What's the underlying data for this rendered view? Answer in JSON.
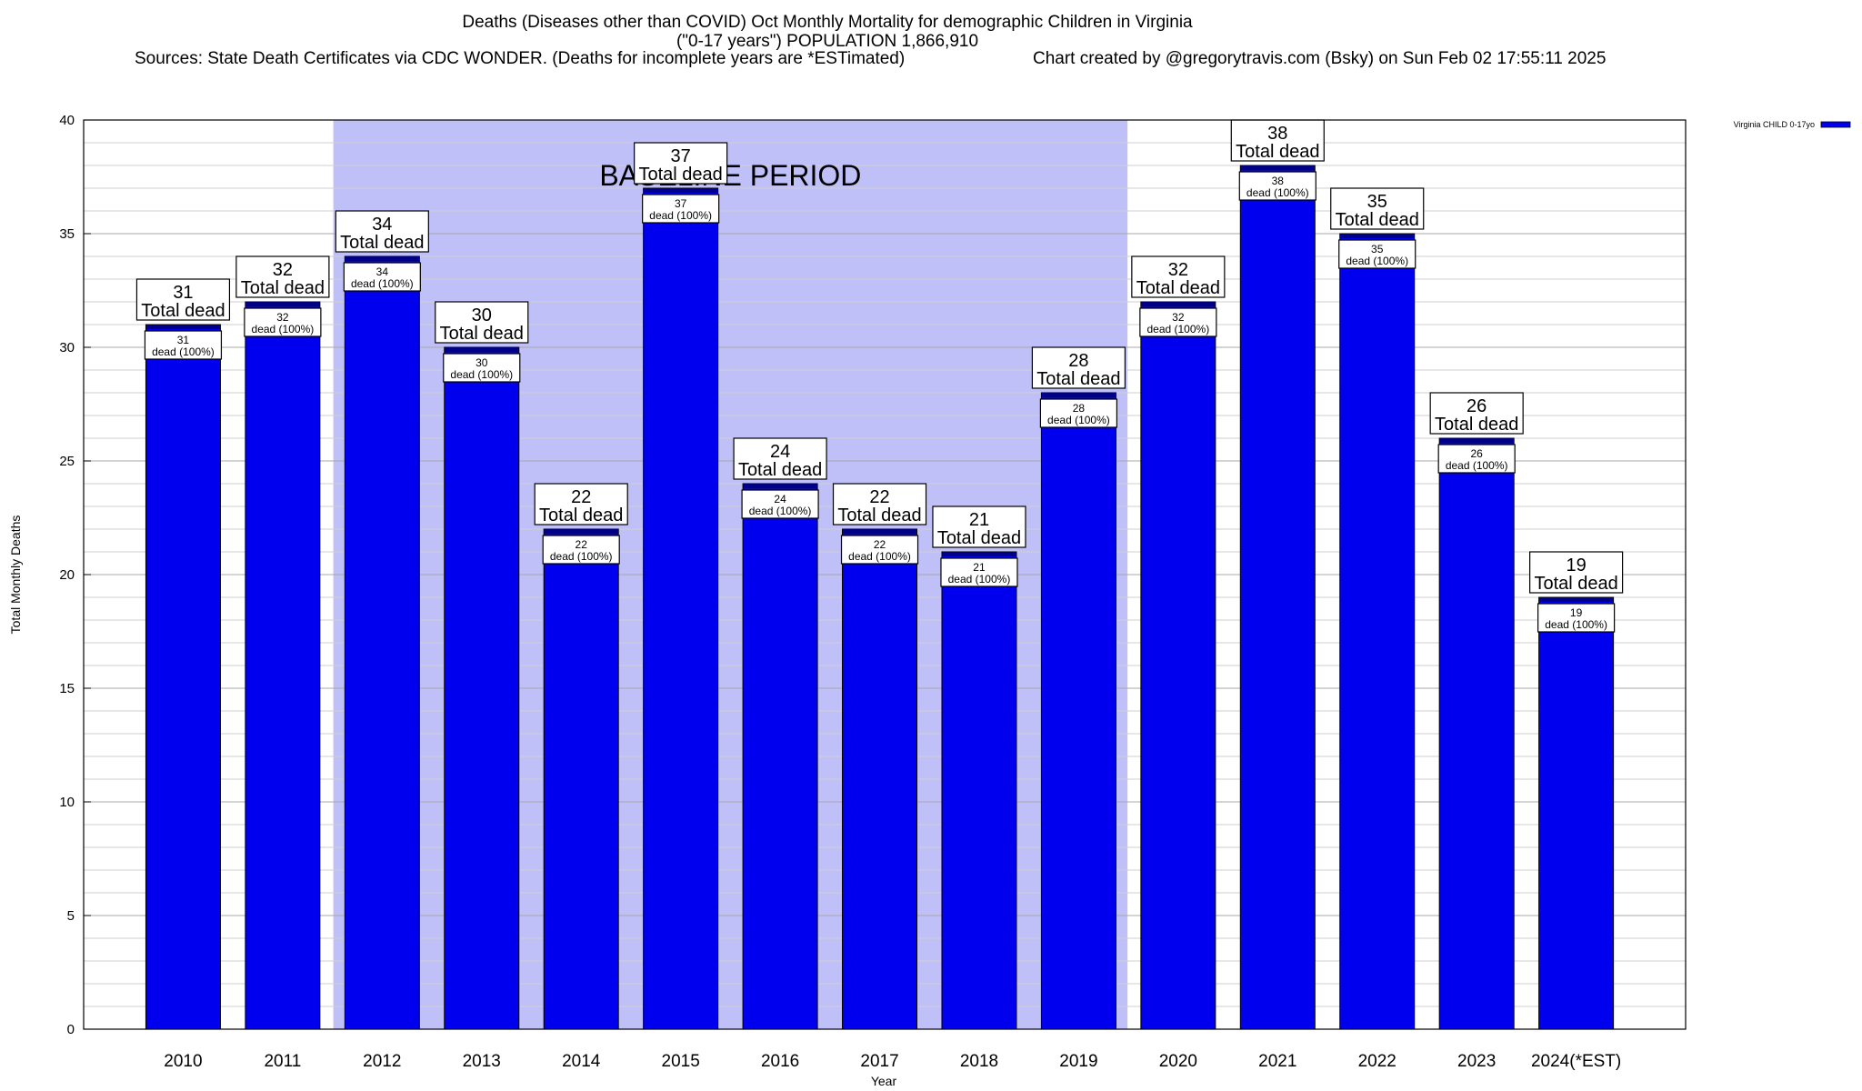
{
  "header": {
    "title_line1": "Deaths (Diseases other than COVID) Oct Monthly Mortality for demographic Children in Virginia",
    "title_line2": "(\"0-17 years\") POPULATION 1,866,910",
    "sources": "Sources: State Death Certificates via CDC WONDER. (Deaths for incomplete years are *ESTimated)",
    "credit": "Chart created by @gregorytravis.com (Bsky) on Sun Feb 02 17:55:11 2025"
  },
  "chart_data": {
    "type": "bar",
    "xlabel": "Year",
    "ylabel": "Total Monthly Deaths",
    "ylim": [
      0,
      40
    ],
    "yticks": [
      0,
      5,
      10,
      15,
      20,
      25,
      30,
      35,
      40
    ],
    "grid": true,
    "legend_position": "top-right",
    "categories": [
      "2010",
      "2011",
      "2012",
      "2013",
      "2014",
      "2015",
      "2016",
      "2017",
      "2018",
      "2019",
      "2020",
      "2021",
      "2022",
      "2023",
      "2024(*EST)"
    ],
    "series": [
      {
        "name": "Virginia CHILD 0-17yo",
        "color": "#0000ee",
        "values": [
          31,
          32,
          34,
          30,
          22,
          37,
          24,
          22,
          21,
          28,
          32,
          38,
          35,
          26,
          19
        ]
      }
    ],
    "total_label_suffix": "Total dead",
    "inner_label_suffix": "dead (100%)",
    "baseline": {
      "label": "BASELINE PERIOD",
      "from": "2012",
      "to": "2019",
      "color": "#c0c0f8"
    }
  }
}
